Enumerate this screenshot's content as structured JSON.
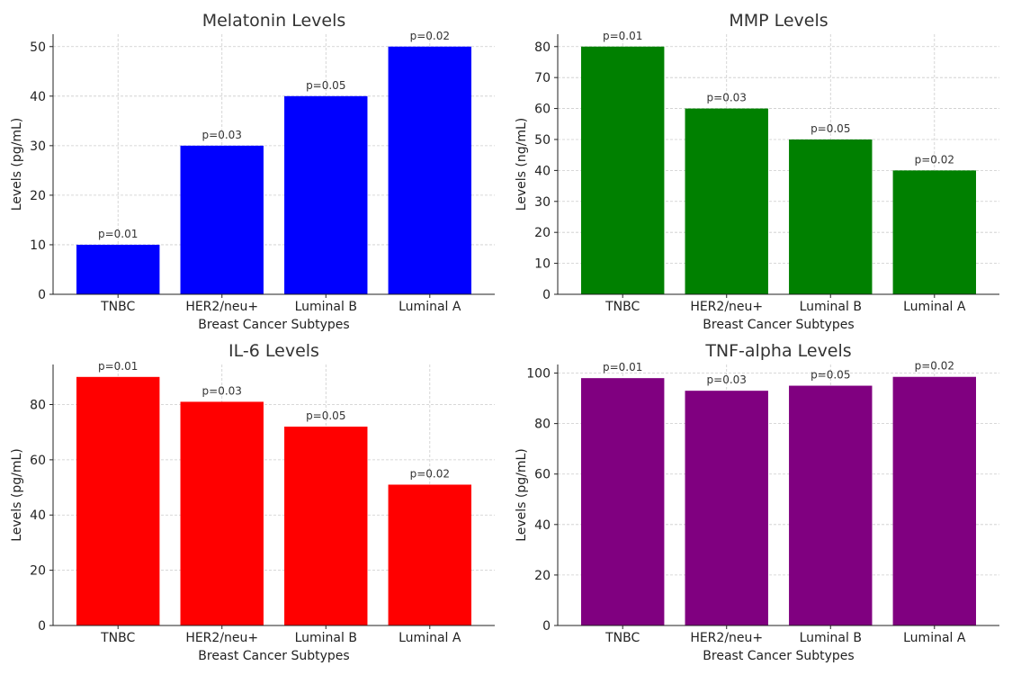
{
  "chart_data": [
    {
      "type": "bar",
      "title": "Melatonin Levels",
      "xlabel": "Breast Cancer Subtypes",
      "ylabel": "Levels (pg/mL)",
      "categories": [
        "TNBC",
        "HER2/neu+",
        "Luminal B",
        "Luminal A"
      ],
      "values": [
        10,
        30,
        40,
        50
      ],
      "annotations": [
        "p=0.01",
        "p=0.03",
        "p=0.05",
        "p=0.02"
      ],
      "color": "#0000ff",
      "ylim": [
        0,
        52.5
      ],
      "yticks": [
        0,
        10,
        20,
        30,
        40,
        50
      ],
      "grid": true
    },
    {
      "type": "bar",
      "title": "MMP Levels",
      "xlabel": "Breast Cancer Subtypes",
      "ylabel": "Levels (ng/mL)",
      "categories": [
        "TNBC",
        "HER2/neu+",
        "Luminal B",
        "Luminal A"
      ],
      "values": [
        80,
        60,
        50,
        40
      ],
      "annotations": [
        "p=0.01",
        "p=0.03",
        "p=0.05",
        "p=0.02"
      ],
      "color": "#008000",
      "ylim": [
        0,
        84
      ],
      "yticks": [
        0,
        10,
        20,
        30,
        40,
        50,
        60,
        70,
        80
      ],
      "grid": true
    },
    {
      "type": "bar",
      "title": "IL-6 Levels",
      "xlabel": "Breast Cancer Subtypes",
      "ylabel": "Levels (pg/mL)",
      "categories": [
        "TNBC",
        "HER2/neu+",
        "Luminal B",
        "Luminal A"
      ],
      "values": [
        90,
        81,
        72,
        51
      ],
      "annotations": [
        "p=0.01",
        "p=0.03",
        "p=0.05",
        "p=0.02"
      ],
      "color": "#ff0000",
      "ylim": [
        0,
        94.5
      ],
      "yticks": [
        0,
        20,
        40,
        60,
        80
      ],
      "grid": true
    },
    {
      "type": "bar",
      "title": "TNF-alpha Levels",
      "xlabel": "Breast Cancer Subtypes",
      "ylabel": "Levels (pg/mL)",
      "categories": [
        "TNBC",
        "HER2/neu+",
        "Luminal B",
        "Luminal A"
      ],
      "values": [
        98,
        93,
        95,
        98.5
      ],
      "annotations": [
        "p=0.01",
        "p=0.03",
        "p=0.05",
        "p=0.02"
      ],
      "color": "#800080",
      "ylim": [
        0,
        103.4
      ],
      "yticks": [
        0,
        20,
        40,
        60,
        80,
        100
      ],
      "grid": true
    }
  ]
}
